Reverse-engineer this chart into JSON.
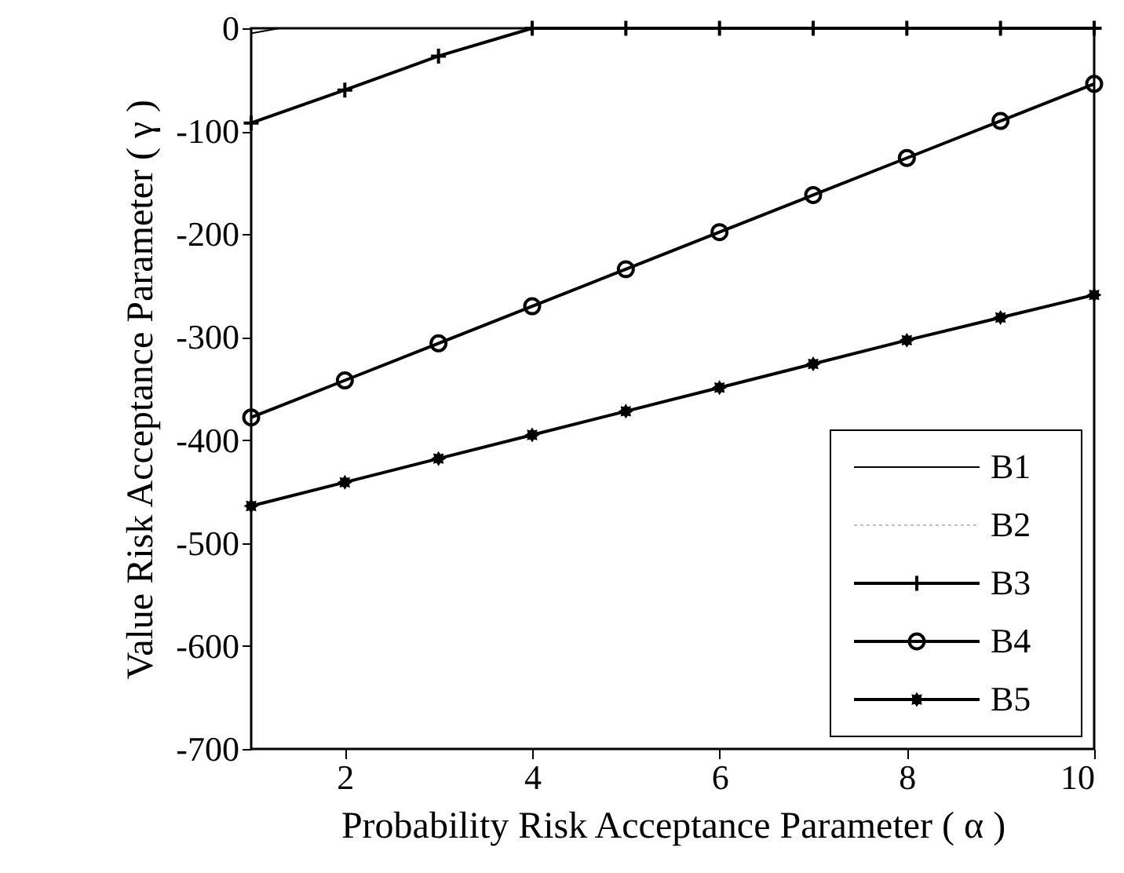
{
  "chart_data": {
    "type": "line",
    "xlabel": "Probability Risk Acceptance Parameter ( α )",
    "ylabel": "Value Risk Acceptance Parameter ( γ )",
    "x": [
      1,
      2,
      3,
      4,
      5,
      6,
      7,
      8,
      9,
      10
    ],
    "series": [
      {
        "name": "B1",
        "color": "#000000",
        "marker": "none",
        "line_style": "solid",
        "x": [
          1,
          1.3,
          2,
          3,
          4
        ],
        "values": [
          -5,
          0,
          0,
          0,
          0
        ]
      },
      {
        "name": "B2",
        "color": "#c0c0c0",
        "marker": "none",
        "line_style": "dotted",
        "values": [
          null,
          null,
          null,
          null,
          null,
          null,
          null,
          null,
          null,
          null
        ]
      },
      {
        "name": "B3",
        "color": "#000000",
        "marker": "cross",
        "line_style": "solid",
        "values": [
          -92,
          -60,
          -27,
          0,
          0,
          0,
          0,
          0,
          0,
          0
        ]
      },
      {
        "name": "B4",
        "color": "#000000",
        "marker": "circle",
        "line_style": "solid",
        "values": [
          -378,
          -342,
          -306,
          -270,
          -234,
          -198,
          -162,
          -126,
          -90,
          -54
        ]
      },
      {
        "name": "B5",
        "color": "#000000",
        "marker": "star",
        "line_style": "solid",
        "values": [
          -464,
          -441,
          -418,
          -395,
          -372,
          -349,
          -326,
          -303,
          -281,
          -259
        ]
      }
    ],
    "xlim": [
      1,
      10
    ],
    "xticks": [
      {
        "value": 2,
        "label": "2"
      },
      {
        "value": 4,
        "label": "4"
      },
      {
        "value": 6,
        "label": "6"
      },
      {
        "value": 8,
        "label": "8"
      },
      {
        "value": 10,
        "label": "10"
      }
    ],
    "ylim": [
      -700,
      0
    ],
    "yticks": [
      -700,
      -600,
      -500,
      -400,
      -300,
      -200,
      -100,
      0
    ],
    "grid": false,
    "legend": "bottom right"
  }
}
